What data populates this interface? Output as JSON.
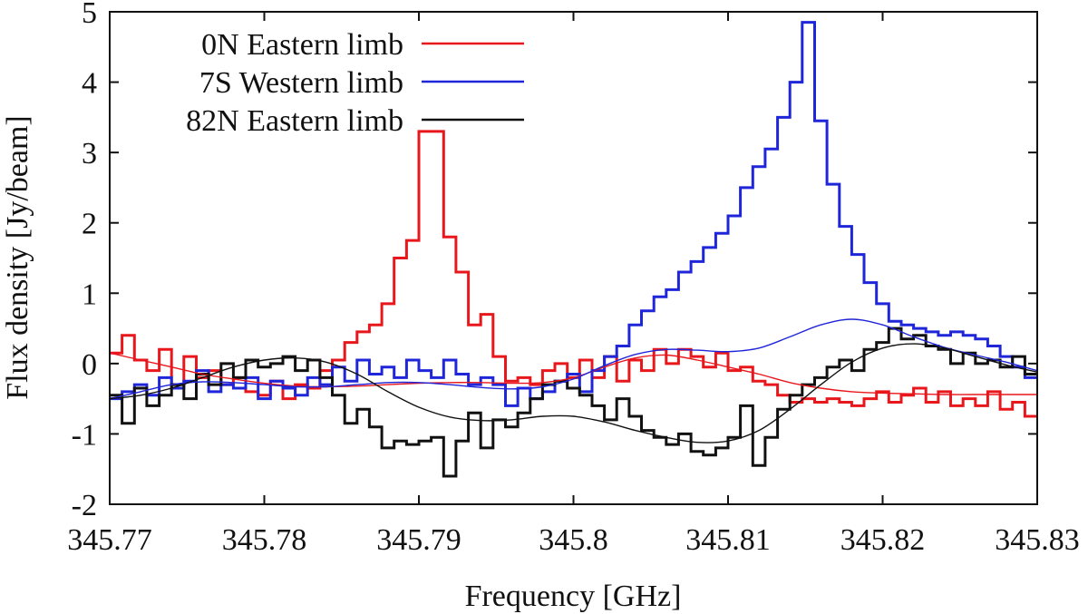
{
  "chart_data": {
    "type": "line",
    "title": "",
    "xlabel": "Frequency [GHz]",
    "ylabel": "Flux density [Jy/beam]",
    "xlim": [
      345.77,
      345.83
    ],
    "ylim": [
      -2,
      5
    ],
    "xticks": [
      345.77,
      345.78,
      345.79,
      345.8,
      345.81,
      345.82,
      345.83
    ],
    "xtick_labels": [
      "345.77",
      "345.78",
      "345.79",
      "345.8",
      "345.81",
      "345.82",
      "345.83"
    ],
    "yticks": [
      -2,
      -1,
      0,
      1,
      2,
      3,
      4,
      5
    ],
    "ytick_labels": [
      "-2",
      "-1",
      "0",
      "1",
      "2",
      "3",
      "4",
      "5"
    ],
    "legend_position": "top-left",
    "series": [
      {
        "name": "0N Eastern limb",
        "color": "#e8171c",
        "style": "steps",
        "x": [
          345.77,
          345.7708,
          345.7716,
          345.7724,
          345.7732,
          345.774,
          345.7748,
          345.7756,
          345.7764,
          345.7772,
          345.778,
          345.7788,
          345.7796,
          345.7804,
          345.7812,
          345.782,
          345.7828,
          345.7836,
          345.7844,
          345.7852,
          345.786,
          345.7868,
          345.7876,
          345.7884,
          345.7892,
          345.79,
          345.7908,
          345.7916,
          345.7924,
          345.7932,
          345.794,
          345.7948,
          345.7956,
          345.7964,
          345.7972,
          345.798,
          345.7988,
          345.7996,
          345.8004,
          345.8012,
          345.802,
          345.8028,
          345.8036,
          345.8044,
          345.8052,
          345.806,
          345.8068,
          345.8076,
          345.8084,
          345.8092,
          345.81,
          345.8108,
          345.8116,
          345.8124,
          345.8132,
          345.814,
          345.8148,
          345.8156,
          345.8164,
          345.8172,
          345.818,
          345.8188,
          345.8196,
          345.8204,
          345.8212,
          345.822,
          345.8228,
          345.8236,
          345.8244,
          345.8252,
          345.826,
          345.8268,
          345.8276,
          345.8284,
          345.8292
        ],
        "y": [
          0.15,
          0.4,
          0.05,
          -0.1,
          0.2,
          -0.3,
          0.1,
          -0.2,
          -0.1,
          -0.3,
          -0.2,
          -0.4,
          -0.45,
          -0.25,
          -0.5,
          -0.3,
          -0.35,
          -0.1,
          0.05,
          0.3,
          0.45,
          0.55,
          0.85,
          1.5,
          1.75,
          3.3,
          3.3,
          1.8,
          1.3,
          0.55,
          0.7,
          0.1,
          -0.25,
          -0.2,
          -0.3,
          -0.1,
          0.0,
          -0.2,
          0.05,
          -0.2,
          0.1,
          -0.25,
          0.05,
          -0.1,
          0.2,
          0.0,
          0.2,
          0.1,
          -0.05,
          0.15,
          -0.1,
          -0.05,
          -0.25,
          -0.3,
          -0.45,
          -0.55,
          -0.5,
          -0.55,
          -0.5,
          -0.55,
          -0.6,
          -0.5,
          -0.4,
          -0.55,
          -0.45,
          -0.35,
          -0.55,
          -0.4,
          -0.6,
          -0.5,
          -0.6,
          -0.4,
          -0.65,
          -0.55,
          -0.75
        ]
      },
      {
        "name": "7S Western limb",
        "color": "#1f25d8",
        "style": "steps",
        "x": [
          345.77,
          345.7708,
          345.7716,
          345.7724,
          345.7732,
          345.774,
          345.7748,
          345.7756,
          345.7764,
          345.7772,
          345.778,
          345.7788,
          345.7796,
          345.7804,
          345.7812,
          345.782,
          345.7828,
          345.7836,
          345.7844,
          345.7852,
          345.786,
          345.7868,
          345.7876,
          345.7884,
          345.7892,
          345.79,
          345.7908,
          345.7916,
          345.7924,
          345.7932,
          345.794,
          345.7948,
          345.7956,
          345.7964,
          345.7972,
          345.798,
          345.7988,
          345.7996,
          345.8004,
          345.8012,
          345.802,
          345.8028,
          345.8036,
          345.8044,
          345.8052,
          345.806,
          345.8068,
          345.8076,
          345.8084,
          345.8092,
          345.81,
          345.8108,
          345.8116,
          345.8124,
          345.8132,
          345.814,
          345.8148,
          345.8156,
          345.8164,
          345.8172,
          345.818,
          345.8188,
          345.8196,
          345.8204,
          345.8212,
          345.822,
          345.8228,
          345.8236,
          345.8244,
          345.8252,
          345.826,
          345.8268,
          345.8276,
          345.8284,
          345.8292
        ],
        "y": [
          -0.5,
          -0.4,
          -0.3,
          -0.45,
          -0.2,
          -0.35,
          -0.25,
          -0.1,
          -0.4,
          -0.3,
          -0.35,
          -0.2,
          -0.5,
          -0.25,
          -0.35,
          -0.45,
          -0.2,
          -0.3,
          -0.05,
          -0.25,
          0.05,
          -0.15,
          -0.05,
          -0.2,
          0.05,
          -0.1,
          -0.2,
          0.05,
          -0.15,
          -0.3,
          -0.2,
          -0.3,
          -0.6,
          -0.35,
          -0.5,
          -0.4,
          -0.25,
          -0.15,
          -0.4,
          -0.1,
          0.1,
          0.25,
          0.55,
          0.75,
          0.95,
          1.05,
          1.3,
          1.45,
          1.65,
          1.85,
          2.1,
          2.5,
          2.8,
          3.05,
          3.5,
          4.0,
          4.85,
          3.45,
          2.55,
          1.95,
          1.55,
          1.15,
          0.85,
          0.6,
          0.55,
          0.5,
          0.45,
          0.4,
          0.45,
          0.4,
          0.35,
          0.25,
          0.1,
          -0.05,
          -0.2
        ]
      },
      {
        "name": "82N Eastern limb",
        "color": "#111111",
        "style": "steps",
        "x": [
          345.77,
          345.7708,
          345.7716,
          345.7724,
          345.7732,
          345.774,
          345.7748,
          345.7756,
          345.7764,
          345.7772,
          345.778,
          345.7788,
          345.7796,
          345.7804,
          345.7812,
          345.782,
          345.7828,
          345.7836,
          345.7844,
          345.7852,
          345.786,
          345.7868,
          345.7876,
          345.7884,
          345.7892,
          345.79,
          345.7908,
          345.7916,
          345.7924,
          345.7932,
          345.794,
          345.7948,
          345.7956,
          345.7964,
          345.7972,
          345.798,
          345.7988,
          345.7996,
          345.8004,
          345.8012,
          345.802,
          345.8028,
          345.8036,
          345.8044,
          345.8052,
          345.806,
          345.8068,
          345.8076,
          345.8084,
          345.8092,
          345.81,
          345.8108,
          345.8116,
          345.8124,
          345.8132,
          345.814,
          345.8148,
          345.8156,
          345.8164,
          345.8172,
          345.818,
          345.8188,
          345.8196,
          345.8204,
          345.8212,
          345.822,
          345.8228,
          345.8236,
          345.8244,
          345.8252,
          345.826,
          345.8268,
          345.8276,
          345.8284,
          345.8292
        ],
        "y": [
          -0.45,
          -0.85,
          -0.35,
          -0.6,
          -0.45,
          -0.3,
          -0.5,
          -0.15,
          -0.3,
          0.0,
          -0.2,
          0.05,
          -0.05,
          0.0,
          0.1,
          -0.1,
          0.05,
          -0.2,
          -0.45,
          -0.85,
          -0.65,
          -0.9,
          -1.2,
          -1.1,
          -1.15,
          -1.1,
          -1.05,
          -1.6,
          -1.1,
          -0.7,
          -1.2,
          -0.8,
          -0.9,
          -0.7,
          -0.5,
          -0.3,
          -0.25,
          -0.35,
          -0.45,
          -0.6,
          -0.8,
          -0.5,
          -0.75,
          -0.95,
          -1.05,
          -1.15,
          -1.0,
          -1.25,
          -1.3,
          -1.2,
          -1.05,
          -0.6,
          -1.45,
          -1.05,
          -0.65,
          -0.45,
          -0.3,
          -0.2,
          -0.05,
          0.05,
          -0.1,
          0.2,
          0.3,
          0.5,
          0.35,
          0.4,
          0.25,
          0.2,
          0.0,
          0.15,
          0.0,
          0.05,
          -0.05,
          0.1,
          -0.15
        ]
      },
      {
        "name": "0N Eastern limb fit",
        "color": "#e8171c",
        "style": "smooth",
        "x": [
          345.77,
          345.772,
          345.774,
          345.776,
          345.778,
          345.78,
          345.782,
          345.784,
          345.786,
          345.788,
          345.79,
          345.792,
          345.794,
          345.796,
          345.798,
          345.8,
          345.802,
          345.804,
          345.806,
          345.808,
          345.81,
          345.812,
          345.814,
          345.816,
          345.818,
          345.82,
          345.822,
          345.824,
          345.826,
          345.828,
          345.83
        ],
        "y": [
          0.15,
          0.05,
          -0.05,
          -0.15,
          -0.22,
          -0.28,
          -0.32,
          -0.33,
          -0.32,
          -0.3,
          -0.28,
          -0.27,
          -0.27,
          -0.28,
          -0.27,
          -0.2,
          -0.05,
          0.08,
          0.12,
          0.05,
          -0.05,
          -0.15,
          -0.27,
          -0.35,
          -0.4,
          -0.42,
          -0.43,
          -0.44,
          -0.44,
          -0.44,
          -0.44
        ]
      },
      {
        "name": "7S Western limb fit",
        "color": "#1f25d8",
        "style": "smooth",
        "x": [
          345.77,
          345.772,
          345.774,
          345.776,
          345.778,
          345.78,
          345.782,
          345.784,
          345.786,
          345.788,
          345.79,
          345.792,
          345.794,
          345.796,
          345.798,
          345.8,
          345.802,
          345.804,
          345.806,
          345.808,
          345.81,
          345.812,
          345.814,
          345.816,
          345.818,
          345.82,
          345.822,
          345.824,
          345.826,
          345.828,
          345.83
        ],
        "y": [
          -0.5,
          -0.4,
          -0.3,
          -0.26,
          -0.27,
          -0.3,
          -0.33,
          -0.33,
          -0.3,
          -0.27,
          -0.27,
          -0.3,
          -0.34,
          -0.36,
          -0.33,
          -0.22,
          -0.03,
          0.13,
          0.2,
          0.19,
          0.17,
          0.22,
          0.38,
          0.55,
          0.63,
          0.55,
          0.38,
          0.23,
          0.12,
          0.02,
          -0.1
        ]
      },
      {
        "name": "82N Eastern limb fit",
        "color": "#111111",
        "style": "smooth",
        "x": [
          345.77,
          345.772,
          345.774,
          345.776,
          345.778,
          345.78,
          345.782,
          345.784,
          345.786,
          345.788,
          345.79,
          345.792,
          345.794,
          345.796,
          345.798,
          345.8,
          345.802,
          345.804,
          345.806,
          345.808,
          345.81,
          345.812,
          345.814,
          345.816,
          345.818,
          345.82,
          345.822,
          345.824,
          345.826,
          345.828,
          345.83
        ],
        "y": [
          -0.5,
          -0.45,
          -0.35,
          -0.2,
          -0.05,
          0.05,
          0.08,
          0.02,
          -0.15,
          -0.4,
          -0.62,
          -0.76,
          -0.81,
          -0.8,
          -0.75,
          -0.75,
          -0.83,
          -0.95,
          -1.05,
          -1.12,
          -1.1,
          -0.95,
          -0.65,
          -0.3,
          0.02,
          0.22,
          0.28,
          0.22,
          0.1,
          -0.02,
          -0.12
        ]
      }
    ]
  }
}
